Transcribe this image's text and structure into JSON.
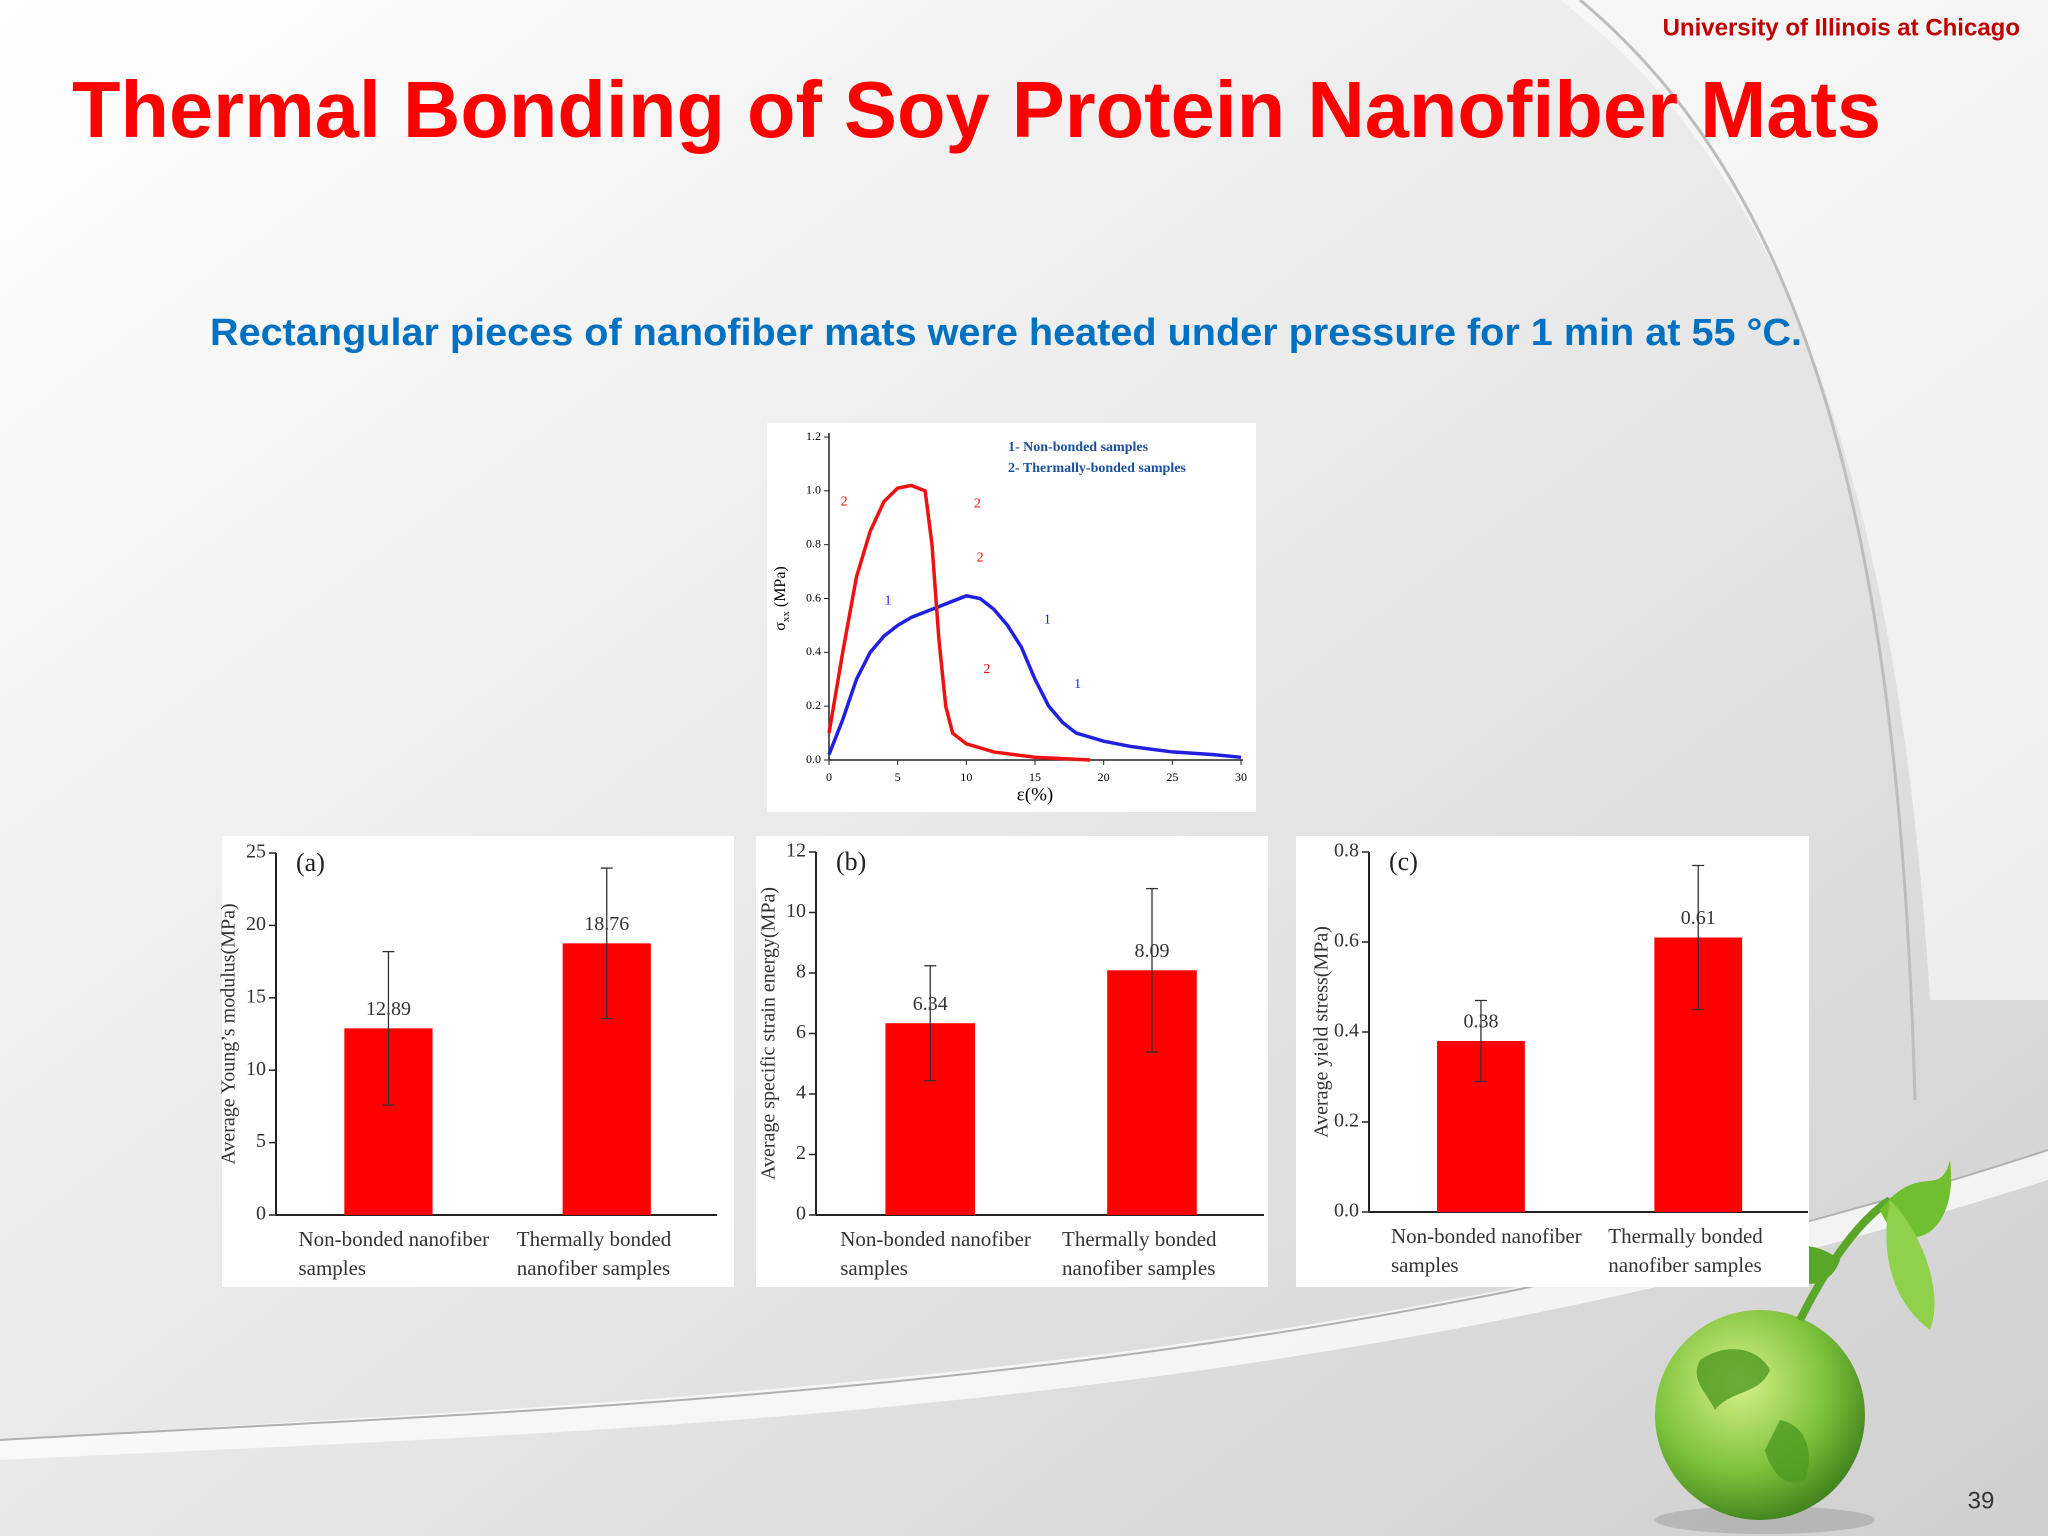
{
  "header": {
    "institution": "University of Illinois at Chicago",
    "title": "Thermal Bonding of Soy Protein Nanofiber Mats",
    "subtitle": "Rectangular pieces of nanofiber mats were heated under pressure for 1 min at 55 °C.",
    "page_number": "39"
  },
  "chart_data": [
    {
      "type": "line",
      "xlabel": "ε(%)",
      "ylabel": "σ",
      "ylabel_subscript": "xx",
      "ylabel_unit": "(MPa)",
      "xlim": [
        0,
        30
      ],
      "ylim": [
        0,
        1.2
      ],
      "xticks": [
        0,
        5,
        10,
        15,
        20,
        25,
        30
      ],
      "yticks": [
        {
          "value": 0,
          "label": "0.0"
        },
        0.2,
        0.4,
        0.6,
        0.8,
        {
          "value": 1,
          "label": "1.0"
        },
        1.2
      ],
      "series": [
        {
          "name": "1- Non-bonded samples",
          "color": "#2020e0",
          "labels": [
            "1",
            "1",
            "1"
          ],
          "x": [
            0,
            1,
            2,
            3,
            4,
            5,
            6,
            7,
            8,
            9,
            10,
            11,
            12,
            13,
            14,
            15,
            16,
            17,
            18,
            20,
            22,
            25,
            28,
            30
          ],
          "values": [
            0.02,
            0.15,
            0.3,
            0.4,
            0.46,
            0.5,
            0.53,
            0.55,
            0.57,
            0.59,
            0.61,
            0.6,
            0.56,
            0.5,
            0.42,
            0.3,
            0.2,
            0.14,
            0.1,
            0.07,
            0.05,
            0.03,
            0.02,
            0.01
          ]
        },
        {
          "name": "2- Thermally-bonded samples",
          "color": "#ee1111",
          "labels": [
            "2",
            "2",
            "2",
            "2"
          ],
          "x": [
            0,
            1,
            2,
            3,
            4,
            5,
            6,
            7,
            7.5,
            8,
            8.5,
            9,
            10,
            12,
            15,
            19
          ],
          "values": [
            0.1,
            0.4,
            0.68,
            0.85,
            0.96,
            1.01,
            1.02,
            1.0,
            0.8,
            0.45,
            0.2,
            0.1,
            0.06,
            0.03,
            0.01,
            0
          ]
        }
      ]
    },
    {
      "type": "bar",
      "panel_label": "(a)",
      "ylabel": "Average Young’s modulus(MPa)",
      "categories": [
        "Non-bonded nanofiber samples",
        "Thermally bonded nanofiber samples"
      ],
      "values": [
        12.89,
        18.76
      ],
      "errors": [
        5.3,
        5.2
      ],
      "color": "#ff0000",
      "ylim": [
        0,
        25
      ],
      "yticks": [
        0,
        5,
        10,
        15,
        20,
        25
      ]
    },
    {
      "type": "bar",
      "panel_label": "(b)",
      "ylabel": "Average specific strain energy(MPa)",
      "categories": [
        "Non-bonded nanofiber samples",
        "Thermally bonded nanofiber samples"
      ],
      "values": [
        6.34,
        8.09
      ],
      "errors": [
        1.9,
        2.7
      ],
      "color": "#ff0000",
      "ylim": [
        0,
        12
      ],
      "yticks": [
        0,
        2,
        4,
        6,
        8,
        10,
        12
      ]
    },
    {
      "type": "bar",
      "panel_label": "(c)",
      "ylabel": "Average yield stress(MPa)",
      "categories": [
        "Non-bonded nanofiber samples",
        "Thermally bonded nanofiber samples"
      ],
      "values": [
        0.38,
        0.61
      ],
      "errors": [
        0.09,
        0.16
      ],
      "color": "#ff0000",
      "ylim": [
        0,
        0.8
      ],
      "yticks": [
        {
          "value": 0,
          "label": "0.0"
        },
        0.2,
        0.4,
        0.6,
        0.8
      ]
    }
  ]
}
